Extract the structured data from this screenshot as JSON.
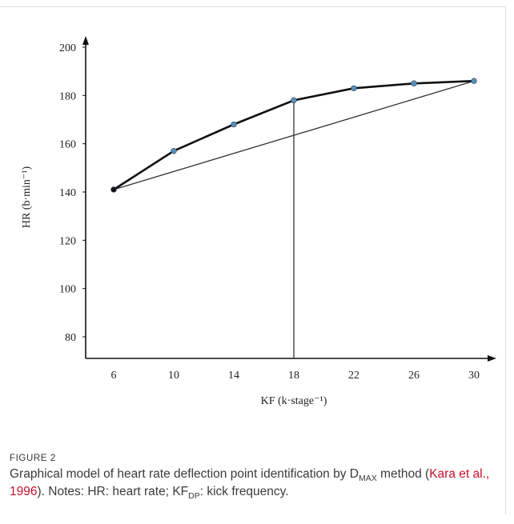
{
  "chart_data": {
    "type": "line",
    "xlabel": "KF (k·stage⁻¹)",
    "ylabel": "HR (b·min⁻¹)",
    "x": [
      6,
      10,
      14,
      18,
      22,
      26,
      30
    ],
    "series": [
      {
        "values": [
          141,
          157,
          168,
          178,
          183,
          185,
          186
        ]
      }
    ],
    "reference_line": {
      "x": [
        6,
        30
      ],
      "y": [
        141,
        186
      ]
    },
    "deflection_point": {
      "x": 18,
      "y": 178
    },
    "xticks": [
      "6",
      "10",
      "14",
      "18",
      "22",
      "26",
      "30"
    ],
    "yticks": [
      "80",
      "100",
      "120",
      "140",
      "160",
      "180",
      "200"
    ],
    "ylim": [
      80,
      200
    ],
    "grid": false,
    "colors": {
      "curve": "#111111",
      "marker": "#5a8fb5",
      "reference": "#333333"
    }
  },
  "figure": {
    "label": "FIGURE 2",
    "caption_part1": "Graphical model of heart rate deflection point identification by D",
    "caption_sub1": "MAX",
    "caption_part2": " method (",
    "citation": "Kara et al., 1996",
    "caption_part3": "). Notes: HR: heart rate; KF",
    "caption_sub2": "DP",
    "caption_part4": ": kick frequency."
  }
}
